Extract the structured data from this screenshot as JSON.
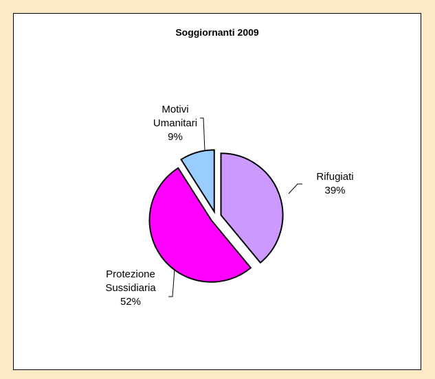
{
  "chart_data": {
    "type": "pie",
    "title": "Soggiornanti 2009",
    "categories": [
      "Rifugiati",
      "Protezione Sussidiaria",
      "Motivi Umanitari"
    ],
    "values": [
      39,
      52,
      9
    ],
    "value_labels": [
      "39%",
      "52%",
      "9%"
    ],
    "colors": [
      "#cc99ff",
      "#ff00ff",
      "#99ccff"
    ]
  }
}
